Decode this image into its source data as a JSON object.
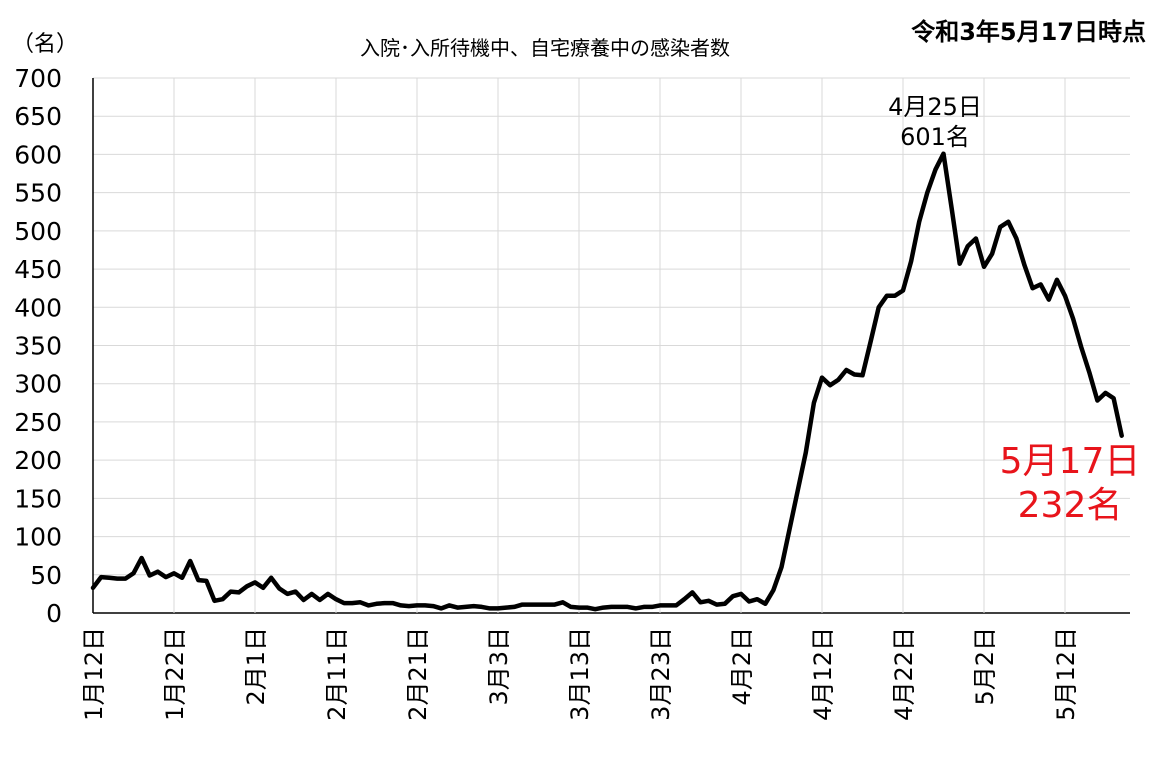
{
  "header": {
    "title": "入院･入所待機中、自宅療養中の感染者数",
    "date_stamp": "令和3年5月17日時点",
    "unit": "（名）"
  },
  "annotations": {
    "peak_date": "4月25日",
    "peak_value": "601名",
    "last_date": "5月17日",
    "last_value": "232名"
  },
  "colors": {
    "line": "#000000",
    "grid": "#d9d9d9",
    "highlight": "#e8141b"
  },
  "chart_data": {
    "type": "line",
    "title": "入院･入所待機中、自宅療養中の感染者数",
    "ylabel": "（名）",
    "xlabel": "",
    "ylim": [
      0,
      700
    ],
    "yticks": [
      0,
      50,
      100,
      150,
      200,
      250,
      300,
      350,
      400,
      450,
      500,
      550,
      600,
      650,
      700
    ],
    "grid": true,
    "legend": "none",
    "x_start": "1月12日",
    "x_end": "5月17日",
    "xtick_labels": [
      "1月12日",
      "1月22日",
      "2月1日",
      "2月11日",
      "2月21日",
      "3月3日",
      "3月13日",
      "3月23日",
      "4月2日",
      "4月12日",
      "4月22日",
      "5月2日",
      "5月12日"
    ],
    "series": [
      {
        "values": [
          33,
          47,
          46,
          45,
          45,
          52,
          72,
          49,
          54,
          47,
          52,
          46,
          68,
          43,
          42,
          16,
          18,
          28,
          27,
          35,
          40,
          33,
          46,
          32,
          25,
          28,
          17,
          25,
          17,
          25,
          18,
          13,
          13,
          14,
          10,
          12,
          13,
          13,
          10,
          9,
          10,
          10,
          9,
          6,
          10,
          7,
          8,
          9,
          8,
          6,
          6,
          7,
          8,
          11,
          11,
          11,
          11,
          11,
          14,
          8,
          7,
          7,
          5,
          7,
          8,
          8,
          8,
          6,
          8,
          8,
          10,
          10,
          10,
          18,
          27,
          14,
          16,
          11,
          12,
          22,
          25,
          15,
          18,
          12,
          30,
          60,
          110,
          160,
          210,
          275,
          308,
          298,
          305,
          318,
          312,
          311,
          355,
          400,
          415,
          415,
          422,
          460,
          512,
          550,
          580,
          601,
          530,
          457,
          480,
          490,
          453,
          470,
          505,
          512,
          490,
          455,
          425,
          430,
          410,
          436,
          415,
          385,
          348,
          315,
          278,
          288,
          281,
          232
        ]
      }
    ],
    "peak": {
      "x": "4月25日",
      "y": 601
    },
    "last": {
      "x": "5月17日",
      "y": 232
    }
  }
}
